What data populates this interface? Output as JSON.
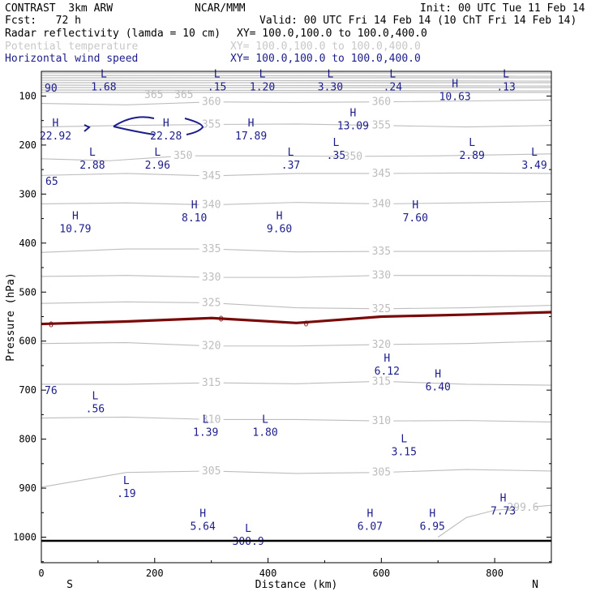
{
  "header": {
    "model": "CONTRAST  3km ARW",
    "org": "NCAR/MMM",
    "init": "Init: 00 UTC Tue 11 Feb 14",
    "fcst": "Fcst:   72 h",
    "valid": "Valid: 00 UTC Fri 14 Feb 14 (10 ChT Fri 14 Feb 14)",
    "field1": "Radar reflectivity (lamda = 10 cm)",
    "field1_xy": "XY= 100.0,100.0 to 100.0,400.0",
    "field2": "Potential temperature",
    "field2_xy": "XY= 100.0,100.0 to 100.0,400.0",
    "field3": "Horizontal wind speed",
    "field3_xy": "XY= 100.0,100.0 to 100.0,400.0"
  },
  "colors": {
    "black": "#000000",
    "theta": "#bdbdbd",
    "wind": "#1c1c8c",
    "zero": "#7a0a0a"
  },
  "chart_data": {
    "type": "line",
    "title": "Cross section: potential temperature and horizontal wind speed",
    "xlabel": "Distance (km)",
    "ylabel": "Pressure (hPa)",
    "xlim": [
      0,
      900
    ],
    "ylim": [
      1100,
      0
    ],
    "xticks": [
      "0",
      "200",
      "400",
      "600",
      "800"
    ],
    "yticks": [
      "100",
      "200",
      "300",
      "400",
      "500",
      "600",
      "700",
      "800",
      "900",
      "1000"
    ],
    "x_end_labels": {
      "left": "S",
      "right": "N"
    },
    "theta_contours": [
      {
        "level": 360,
        "label": "360",
        "x": [
          0,
          150,
          300,
          450,
          600,
          750,
          900
        ],
        "p": [
          115,
          118,
          112,
          113,
          112,
          110,
          108
        ]
      },
      {
        "level": 355,
        "label": "355",
        "x": [
          0,
          150,
          300,
          450,
          600,
          750,
          900
        ],
        "p": [
          163,
          160,
          158,
          157,
          160,
          163,
          160
        ]
      },
      {
        "level": 350,
        "label": "350",
        "x": [
          0,
          120,
          250,
          400,
          550,
          700,
          900
        ],
        "p": [
          228,
          232,
          222,
          222,
          223,
          222,
          218
        ]
      },
      {
        "level": 345,
        "label": "345",
        "x": [
          0,
          150,
          300,
          450,
          600,
          750,
          900
        ],
        "p": [
          262,
          258,
          263,
          258,
          258,
          257,
          258
        ]
      },
      {
        "level": 340,
        "label": "340",
        "x": [
          0,
          150,
          300,
          450,
          600,
          750,
          900
        ],
        "p": [
          320,
          318,
          322,
          317,
          320,
          318,
          315
        ]
      },
      {
        "level": 335,
        "label": "335",
        "x": [
          0,
          150,
          300,
          450,
          600,
          750,
          900
        ],
        "p": [
          419,
          412,
          412,
          418,
          417,
          417,
          416
        ]
      },
      {
        "level": 330,
        "label": "330",
        "x": [
          0,
          150,
          300,
          450,
          600,
          750,
          900
        ],
        "p": [
          468,
          466,
          470,
          470,
          466,
          466,
          467
        ]
      },
      {
        "level": 325,
        "label": "325",
        "x": [
          0,
          150,
          300,
          450,
          600,
          750,
          900
        ],
        "p": [
          523,
          520,
          522,
          532,
          534,
          532,
          527
        ]
      },
      {
        "level": 320,
        "label": "320",
        "x": [
          0,
          150,
          300,
          450,
          600,
          750,
          900
        ],
        "p": [
          605,
          603,
          610,
          610,
          607,
          605,
          600
        ]
      },
      {
        "level": 315,
        "label": "315",
        "x": [
          0,
          150,
          300,
          450,
          600,
          750,
          900
        ],
        "p": [
          688,
          688,
          685,
          687,
          682,
          688,
          690
        ]
      },
      {
        "level": 310,
        "label": "310",
        "x": [
          0,
          150,
          300,
          450,
          600,
          750,
          900
        ],
        "p": [
          757,
          755,
          760,
          760,
          763,
          762,
          765
        ]
      },
      {
        "level": 305,
        "label": "305",
        "x": [
          0,
          150,
          300,
          450,
          600,
          750,
          900
        ],
        "p": [
          898,
          868,
          865,
          870,
          868,
          862,
          865
        ]
      },
      {
        "level": 300,
        "label": "299.6",
        "x": [
          700,
          750,
          800,
          850,
          900
        ],
        "p": [
          1000,
          960,
          945,
          940,
          935
        ]
      }
    ],
    "zero_line": {
      "label": "0",
      "x": [
        0,
        150,
        300,
        450,
        600,
        750,
        900
      ],
      "p": [
        565,
        560,
        553,
        563,
        550,
        546,
        541
      ]
    },
    "extrema": [
      {
        "type": "H",
        "value": "22.92",
        "x": 25,
        "p": 185
      },
      {
        "type": "H",
        "value": "22.28",
        "x": 220,
        "p": 185
      },
      {
        "type": "H",
        "value": "17.89",
        "x": 370,
        "p": 185
      },
      {
        "type": "H",
        "value": "13.09",
        "x": 550,
        "p": 165
      },
      {
        "type": "H",
        "value": "10.63",
        "x": 730,
        "p": 105
      },
      {
        "type": "L",
        "value": "1.68",
        "x": 110,
        "p": 85
      },
      {
        "type": "L",
        "value": ".15",
        "x": 310,
        "p": 85
      },
      {
        "type": "L",
        "value": "1.20",
        "x": 390,
        "p": 85
      },
      {
        "type": "L",
        "value": "3.30",
        "x": 510,
        "p": 85
      },
      {
        "type": "L",
        "value": ".24",
        "x": 620,
        "p": 85
      },
      {
        "type": "L",
        "value": ".13",
        "x": 820,
        "p": 85
      },
      {
        "type": "L",
        "value": "2.88",
        "x": 90,
        "p": 245
      },
      {
        "type": "L",
        "value": "2.96",
        "x": 205,
        "p": 245
      },
      {
        "type": "L",
        "value": ".37",
        "x": 440,
        "p": 245
      },
      {
        "type": "L",
        "value": ".35",
        "x": 520,
        "p": 225
      },
      {
        "type": "L",
        "value": "2.89",
        "x": 760,
        "p": 225
      },
      {
        "type": "L",
        "value": "3.49",
        "x": 870,
        "p": 245
      },
      {
        "type": "H",
        "value": "8.10",
        "x": 270,
        "p": 352
      },
      {
        "type": "H",
        "value": "7.60",
        "x": 660,
        "p": 352
      },
      {
        "type": "H",
        "value": "10.79",
        "x": 60,
        "p": 375
      },
      {
        "type": "H",
        "value": "9.60",
        "x": 420,
        "p": 375
      },
      {
        "type": "H",
        "value": "6.12",
        "x": 610,
        "p": 665
      },
      {
        "type": "H",
        "value": "6.40",
        "x": 700,
        "p": 697
      },
      {
        "type": "L",
        "value": ".56",
        "x": 95,
        "p": 742
      },
      {
        "type": "L",
        "value": "1.39",
        "x": 290,
        "p": 790
      },
      {
        "type": "L",
        "value": "1.80",
        "x": 395,
        "p": 790
      },
      {
        "type": "L",
        "value": "3.15",
        "x": 640,
        "p": 830
      },
      {
        "type": "L",
        "value": ".19",
        "x": 150,
        "p": 915
      },
      {
        "type": "H",
        "value": "5.64",
        "x": 285,
        "p": 982
      },
      {
        "type": "H",
        "value": "6.07",
        "x": 580,
        "p": 982
      },
      {
        "type": "H",
        "value": "6.95",
        "x": 690,
        "p": 982
      },
      {
        "type": "H",
        "value": "7.73",
        "x": 815,
        "p": 950
      },
      {
        "type": "L",
        "value": "300.9",
        "x": 365,
        "p": 1012
      }
    ],
    "edge_labels": [
      "90",
      "65",
      "76",
      "365",
      "365"
    ]
  }
}
